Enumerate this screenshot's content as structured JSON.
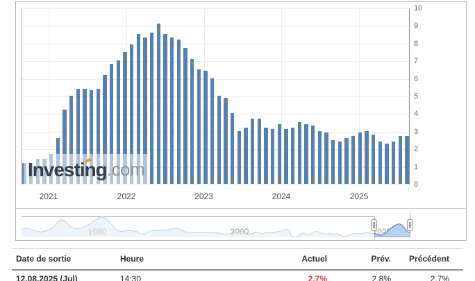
{
  "watermark": {
    "brand": "Investing",
    "suffix": ".com",
    "accent_color": "#f09c1c"
  },
  "chart_data": {
    "type": "bar",
    "x_year_labels": [
      "2021",
      "2022",
      "2023",
      "2024",
      "2025"
    ],
    "y_ticks": [
      10,
      9,
      8,
      7,
      6,
      5,
      4,
      3,
      2,
      1,
      0
    ],
    "ylim": [
      0,
      10
    ],
    "grid": true,
    "legend": "none",
    "bar_color": "#5681ae",
    "values": [
      1.2,
      1.2,
      1.4,
      1.4,
      1.7,
      2.6,
      4.2,
      5.0,
      5.4,
      5.4,
      5.3,
      5.4,
      6.2,
      6.8,
      7.0,
      7.5,
      7.9,
      8.5,
      8.3,
      8.6,
      9.1,
      8.5,
      8.3,
      8.2,
      7.7,
      7.1,
      6.5,
      6.4,
      6.0,
      5.0,
      4.9,
      4.0,
      3.0,
      3.2,
      3.7,
      3.7,
      3.2,
      3.1,
      3.4,
      3.1,
      3.2,
      3.5,
      3.4,
      3.3,
      3.0,
      2.9,
      2.5,
      2.4,
      2.6,
      2.7,
      2.9,
      3.0,
      2.8,
      2.4,
      2.3,
      2.4,
      2.7,
      2.7
    ]
  },
  "navigator": {
    "decade_labels": [
      "1980",
      "2000",
      "2020"
    ],
    "sparkline": [
      [
        0,
        5.4
      ],
      [
        8,
        6.0
      ],
      [
        18,
        4.6
      ],
      [
        28,
        3.2
      ],
      [
        38,
        4.5
      ],
      [
        45,
        6.4
      ],
      [
        52,
        10.5
      ],
      [
        57,
        12.2
      ],
      [
        63,
        11.0
      ],
      [
        70,
        7.2
      ],
      [
        79,
        5.5
      ],
      [
        88,
        6.6
      ],
      [
        98,
        8.8
      ],
      [
        105,
        11.5
      ],
      [
        112,
        13.8
      ],
      [
        117,
        14.3
      ],
      [
        124,
        12.0
      ],
      [
        130,
        8.6
      ],
      [
        136,
        5.2
      ],
      [
        142,
        3.7
      ],
      [
        150,
        4.1
      ],
      [
        158,
        4.4
      ],
      [
        165,
        3.7
      ],
      [
        172,
        1.8
      ],
      [
        178,
        2.2
      ],
      [
        186,
        4.4
      ],
      [
        198,
        4.6
      ],
      [
        208,
        4.8
      ],
      [
        218,
        5.6
      ],
      [
        224,
        6.2
      ],
      [
        230,
        4.9
      ],
      [
        237,
        3.0
      ],
      [
        248,
        2.9
      ],
      [
        258,
        2.7
      ],
      [
        266,
        3.0
      ],
      [
        272,
        2.5
      ],
      [
        278,
        3.2
      ],
      [
        285,
        2.2
      ],
      [
        292,
        1.7
      ],
      [
        300,
        2.2
      ],
      [
        308,
        2.9
      ],
      [
        314,
        3.4
      ],
      [
        320,
        3.7
      ],
      [
        326,
        1.6
      ],
      [
        333,
        2.4
      ],
      [
        340,
        3.3
      ],
      [
        347,
        2.1
      ],
      [
        354,
        3.2
      ],
      [
        360,
        2.6
      ],
      [
        368,
        3.5
      ],
      [
        375,
        4.1
      ],
      [
        381,
        5.6
      ],
      [
        385,
        4.9
      ],
      [
        388,
        1.2
      ],
      [
        391,
        -0.5
      ],
      [
        394,
        -1.9
      ],
      [
        397,
        -0.8
      ],
      [
        401,
        1.8
      ],
      [
        406,
        2.7
      ],
      [
        411,
        1.2
      ],
      [
        416,
        1.5
      ],
      [
        421,
        3.3
      ],
      [
        426,
        3.8
      ],
      [
        431,
        2.6
      ],
      [
        437,
        1.8
      ],
      [
        443,
        2.1
      ],
      [
        449,
        1.6
      ],
      [
        454,
        2.1
      ],
      [
        459,
        1.0
      ],
      [
        464,
        0.1
      ],
      [
        468,
        0.4
      ],
      [
        473,
        1.3
      ],
      [
        478,
        2.2
      ],
      [
        483,
        1.9
      ],
      [
        488,
        2.3
      ],
      [
        493,
        2.6
      ],
      [
        498,
        2.9
      ],
      [
        503,
        2.2
      ],
      [
        508,
        2.4
      ],
      [
        513,
        1.5
      ],
      [
        517,
        0.7
      ],
      [
        521,
        1.6
      ],
      [
        525,
        3.0
      ],
      [
        529,
        4.9
      ],
      [
        533,
        6.6
      ],
      [
        537,
        7.9
      ],
      [
        541,
        8.9
      ],
      [
        544,
        9.2
      ],
      [
        548,
        8.3
      ],
      [
        551,
        6.5
      ],
      [
        554,
        4.4
      ],
      [
        556,
        3.4
      ],
      [
        558,
        3.2
      ],
      [
        559,
        3.4
      ]
    ]
  },
  "table": {
    "headers": [
      "Date de sortie",
      "Heure",
      "Actuel",
      "Prév.",
      "Précédent"
    ],
    "rows": [
      {
        "date": "12.08.2025 (Jul)",
        "time": "14:30",
        "actual": "2.7%",
        "forecast": "2.8%",
        "previous": "2.7%",
        "actual_color": "#db4437"
      }
    ]
  }
}
